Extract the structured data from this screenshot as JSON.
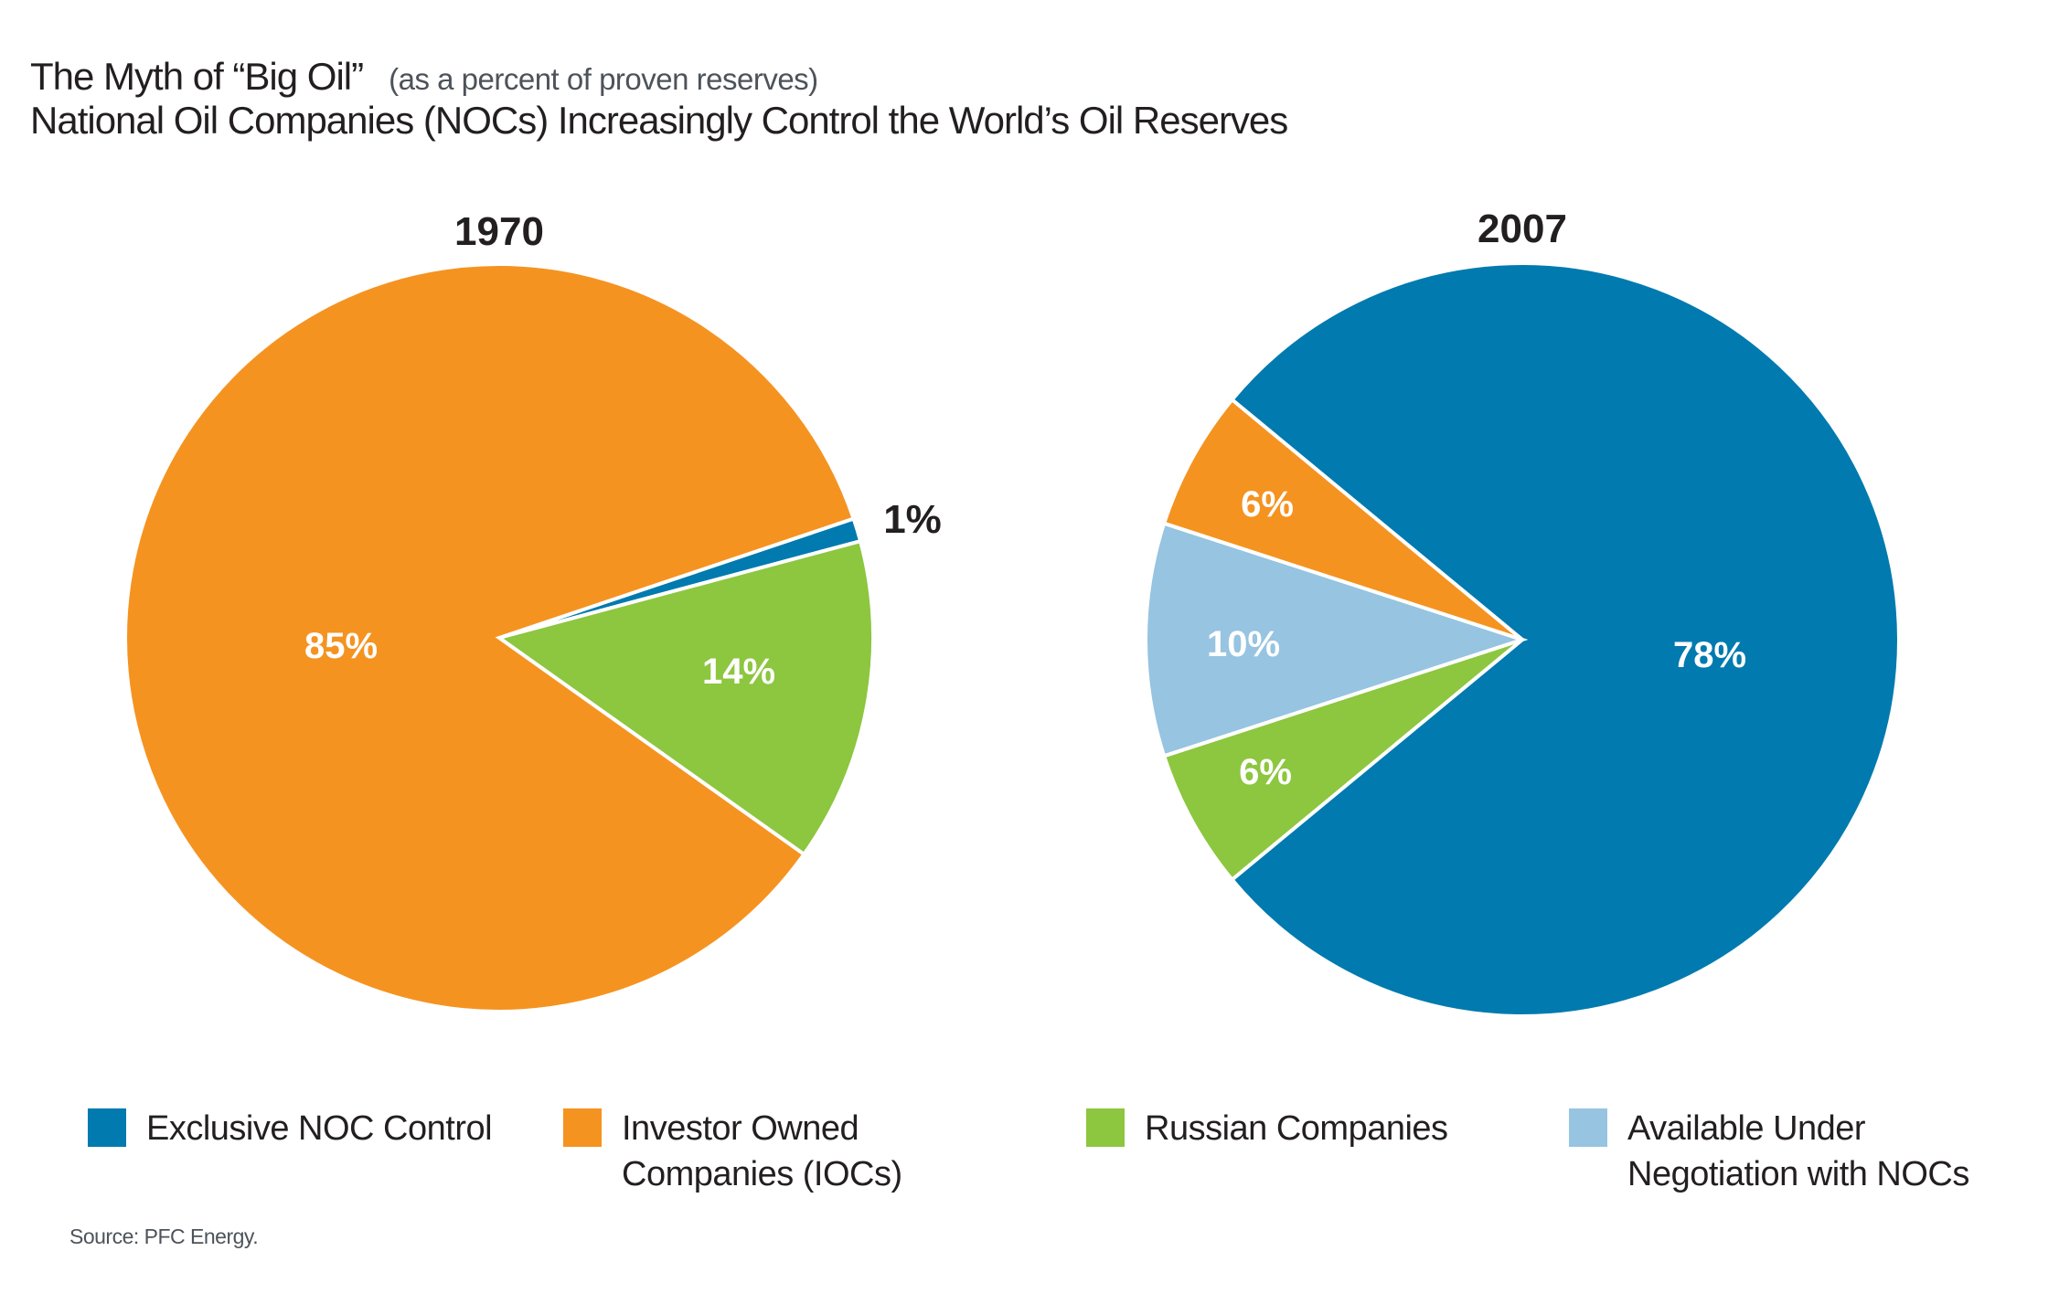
{
  "title": {
    "main": "The Myth of “Big Oil”",
    "qualifier": "(as a percent of proven reserves)",
    "subtitle": "National Oil Companies (NOCs) Increasingly Control the World’s Oil Reserves"
  },
  "colors": {
    "exclusive_noc": "#007aaf",
    "ioc": "#f59321",
    "russian": "#8dc63f",
    "negotiation": "#96c4e1"
  },
  "legend": [
    {
      "key": "exclusive_noc",
      "label_lines": [
        "Exclusive NOC Control"
      ]
    },
    {
      "key": "ioc",
      "label_lines": [
        "Investor Owned",
        "Companies (IOCs)"
      ]
    },
    {
      "key": "russian",
      "label_lines": [
        "Russian Companies"
      ]
    },
    {
      "key": "negotiation",
      "label_lines": [
        "Available Under",
        "Negotiation with NOCs"
      ]
    }
  ],
  "source": "Source: PFC Energy.",
  "chart_data": [
    {
      "type": "pie",
      "title": "1970",
      "unit": "percent of proven reserves",
      "slices": [
        {
          "name": "Exclusive NOC Control",
          "key": "exclusive_noc",
          "value": 1,
          "label": "1%",
          "label_position": "outside"
        },
        {
          "name": "Russian Companies",
          "key": "russian",
          "value": 14,
          "label": "14%"
        },
        {
          "name": "Investor Owned Companies (IOCs)",
          "key": "ioc",
          "value": 85,
          "label": "85%"
        }
      ]
    },
    {
      "type": "pie",
      "title": "2007",
      "unit": "percent of proven reserves",
      "slices": [
        {
          "name": "Exclusive NOC Control",
          "key": "exclusive_noc",
          "value": 78,
          "label": "78%"
        },
        {
          "name": "Russian Companies",
          "key": "russian",
          "value": 6,
          "label": "6%"
        },
        {
          "name": "Available Under Negotiation with NOCs",
          "key": "negotiation",
          "value": 10,
          "label": "10%"
        },
        {
          "name": "Investor Owned Companies (IOCs)",
          "key": "ioc",
          "value": 6,
          "label": "6%"
        }
      ]
    }
  ]
}
